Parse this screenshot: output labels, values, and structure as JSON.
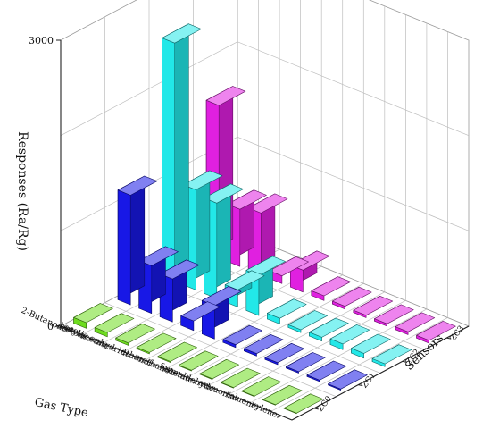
{
  "chart_data": {
    "type": "bar3d",
    "title": "",
    "zlabel": "Responses (Ra/Rg)",
    "xlabel": "Gas Type",
    "ylabel": "Sensors",
    "zlim": [
      0,
      3000
    ],
    "z_tick_labels": [
      "0",
      "3000"
    ],
    "grid": true,
    "categories": [
      "2-Butanone",
      "acetone",
      "butylacetate",
      "acetic anhydride",
      "ethanol",
      "methanol",
      "acetate",
      "formaldehyde",
      "ammonia",
      "toluene",
      "xylene"
    ],
    "series": [
      {
        "name": "ZC0",
        "color": "#6ddc1e",
        "values": [
          60,
          45,
          25,
          15,
          10,
          8,
          8,
          6,
          6,
          5,
          5
        ]
      },
      {
        "name": "ZC1",
        "color": "#1818e6",
        "values": [
          1150,
          500,
          450,
          100,
          350,
          30,
          25,
          20,
          15,
          15,
          12
        ]
      },
      {
        "name": "ZC2",
        "color": "#22e8e8",
        "values": [
          2500,
          1050,
          1000,
          180,
          420,
          60,
          30,
          40,
          60,
          50,
          30
        ]
      },
      {
        "name": "ZC3",
        "color": "#e020e0",
        "values": [
          1600,
          600,
          650,
          80,
          230,
          50,
          30,
          25,
          25,
          30,
          30
        ]
      }
    ]
  }
}
